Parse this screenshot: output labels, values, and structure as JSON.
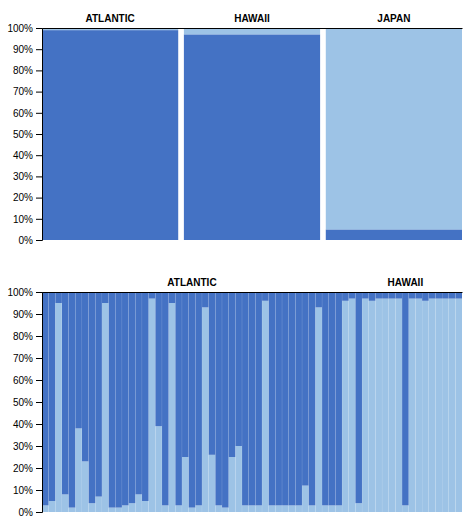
{
  "chart_data": [
    {
      "type": "bar",
      "stacked": true,
      "categories": [
        "ATLANTIC",
        "HAWAII",
        "JAPAN"
      ],
      "series": [
        {
          "color": "#4472C4",
          "values": [
            0.99,
            0.97,
            0.05
          ]
        },
        {
          "color": "#9DC3E6",
          "values": [
            0.01,
            0.03,
            0.95
          ]
        }
      ],
      "ylim": [
        0,
        1
      ],
      "yticks": [
        {
          "value": 0,
          "label": "0%"
        },
        {
          "value": 0.1,
          "label": "10%"
        },
        {
          "value": 0.2,
          "label": "20%"
        },
        {
          "value": 0.3,
          "label": "30%"
        },
        {
          "value": 0.4,
          "label": "40%"
        },
        {
          "value": 0.5,
          "label": "50%"
        },
        {
          "value": 0.6,
          "label": "60%"
        },
        {
          "value": 0.7,
          "label": "70%"
        },
        {
          "value": 0.8,
          "label": "80%"
        },
        {
          "value": 0.9,
          "label": "90%"
        },
        {
          "value": 1,
          "label": "100%"
        }
      ]
    },
    {
      "type": "bar",
      "stacked": true,
      "categories": [
        null,
        null,
        null,
        null,
        null,
        null,
        null,
        null,
        null,
        null,
        null,
        null,
        null,
        null,
        null,
        null,
        null,
        null,
        null,
        null,
        null,
        null,
        "ATLANTIC",
        null,
        null,
        null,
        null,
        null,
        null,
        null,
        null,
        null,
        null,
        null,
        null,
        null,
        null,
        null,
        null,
        null,
        null,
        null,
        null,
        null,
        null,
        null,
        null,
        null,
        null,
        null,
        null,
        null,
        null,
        null,
        "HAWAII",
        null,
        null,
        null,
        null,
        null,
        null,
        null,
        null
      ],
      "series": [
        {
          "color": "#9DC3E6",
          "values": [
            0.03,
            0.05,
            0.95,
            0.08,
            0.02,
            0.38,
            0.23,
            0.04,
            0.07,
            0.95,
            0.02,
            0.02,
            0.03,
            0.04,
            0.08,
            0.05,
            0.97,
            0.39,
            0.03,
            0.95,
            0.03,
            0.25,
            0.02,
            0.03,
            0.93,
            0.26,
            0.03,
            0.02,
            0.25,
            0.3,
            0.03,
            0.03,
            0.03,
            0.96,
            0.03,
            0.03,
            0.03,
            0.03,
            0.03,
            0.12,
            0.03,
            0.93,
            0.03,
            0.03,
            0.03,
            0.96,
            0.97,
            0.04,
            0.97,
            0.96,
            0.97,
            0.97,
            0.97,
            0.97,
            0.03,
            0.97,
            0.97,
            0.96,
            0.97,
            0.97,
            0.97,
            0.97,
            0.97
          ]
        },
        {
          "color": "#4472C4",
          "values": [
            0.97,
            0.95,
            0.05,
            0.92,
            0.98,
            0.62,
            0.77,
            0.96,
            0.93,
            0.05,
            0.98,
            0.98,
            0.97,
            0.96,
            0.92,
            0.95,
            0.03,
            0.61,
            0.97,
            0.05,
            0.97,
            0.75,
            0.98,
            0.97,
            0.07,
            0.74,
            0.97,
            0.98,
            0.75,
            0.7,
            0.97,
            0.97,
            0.97,
            0.04,
            0.97,
            0.97,
            0.97,
            0.97,
            0.97,
            0.88,
            0.97,
            0.07,
            0.97,
            0.97,
            0.97,
            0.04,
            0.03,
            0.96,
            0.03,
            0.04,
            0.03,
            0.03,
            0.03,
            0.03,
            0.97,
            0.03,
            0.03,
            0.04,
            0.03,
            0.03,
            0.03,
            0.03,
            0.03
          ]
        }
      ],
      "ylim": [
        0,
        1
      ],
      "yticks": [
        {
          "value": 0,
          "label": "0%"
        },
        {
          "value": 0.1,
          "label": "10%"
        },
        {
          "value": 0.2,
          "label": "20%"
        },
        {
          "value": 0.3,
          "label": "30%"
        },
        {
          "value": 0.4,
          "label": "40%"
        },
        {
          "value": 0.5,
          "label": "50%"
        },
        {
          "value": 0.6,
          "label": "60%"
        },
        {
          "value": 0.7,
          "label": "70%"
        },
        {
          "value": 0.8,
          "label": "80%"
        },
        {
          "value": 0.9,
          "label": "90%"
        },
        {
          "value": 1,
          "label": "100%"
        }
      ]
    }
  ]
}
